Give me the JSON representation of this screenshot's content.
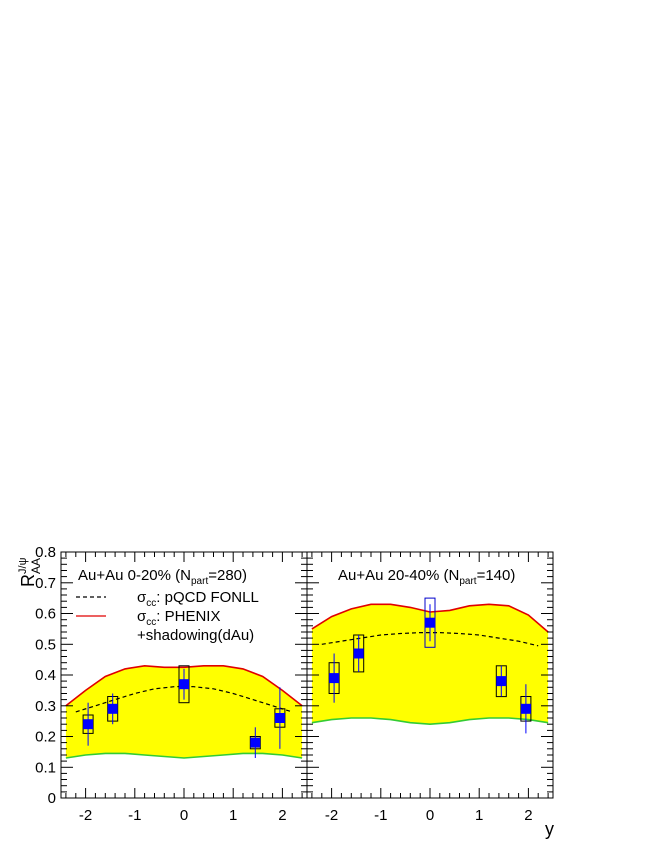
{
  "chart_data": {
    "type": "scatter",
    "ylabel": "R",
    "ylabel_sub": "AA",
    "ylabel_sup": "J/ψ",
    "xlabel": "y",
    "ylim": [
      0,
      0.8
    ],
    "xlim": [
      -2.5,
      2.5
    ],
    "yticks": [
      "0",
      "0.1",
      "0.2",
      "0.3",
      "0.4",
      "0.5",
      "0.6",
      "0.7",
      "0.8"
    ],
    "xticks": [
      "-2",
      "-1",
      "0",
      "1",
      "2"
    ],
    "legend": {
      "dashed": {
        "sym": "σ",
        "sub": "cc",
        "text": ": pQCD FONLL"
      },
      "red": {
        "sym": "σ",
        "sub": "cc",
        "text": ": PHENIX"
      },
      "red_line2": "+shadowing(dAu)"
    },
    "panels": [
      {
        "title_main": "Au+Au 0-20% (N",
        "title_sub": "part",
        "title_end": "=280)",
        "points": [
          {
            "x": -1.95,
            "y": 0.24,
            "stat": 0.07,
            "sys": 0.03,
            "box_color": "#000000"
          },
          {
            "x": -1.45,
            "y": 0.29,
            "stat": 0.05,
            "sys": 0.04,
            "box_color": "#000000"
          },
          {
            "x": 0.0,
            "y": 0.37,
            "stat": 0.05,
            "sys": 0.06,
            "box_color": "#000000"
          },
          {
            "x": 1.45,
            "y": 0.18,
            "stat": 0.05,
            "sys": 0.02,
            "box_color": "#000000"
          },
          {
            "x": 1.95,
            "y": 0.26,
            "stat": 0.1,
            "sys": 0.03,
            "box_color": "#000000"
          }
        ],
        "band_upper": [
          [
            -2.4,
            0.3
          ],
          [
            -2.0,
            0.35
          ],
          [
            -1.6,
            0.395
          ],
          [
            -1.2,
            0.42
          ],
          [
            -0.8,
            0.43
          ],
          [
            -0.4,
            0.425
          ],
          [
            0.0,
            0.425
          ],
          [
            0.4,
            0.43
          ],
          [
            0.8,
            0.43
          ],
          [
            1.2,
            0.42
          ],
          [
            1.6,
            0.395
          ],
          [
            2.0,
            0.35
          ],
          [
            2.4,
            0.3
          ]
        ],
        "band_lower": [
          [
            -2.4,
            0.13
          ],
          [
            -2.0,
            0.14
          ],
          [
            -1.6,
            0.145
          ],
          [
            -1.2,
            0.145
          ],
          [
            -0.8,
            0.14
          ],
          [
            -0.4,
            0.135
          ],
          [
            0.0,
            0.13
          ],
          [
            0.4,
            0.135
          ],
          [
            0.8,
            0.14
          ],
          [
            1.2,
            0.145
          ],
          [
            1.6,
            0.145
          ],
          [
            2.0,
            0.14
          ],
          [
            2.4,
            0.13
          ]
        ],
        "dashed": [
          [
            -2.2,
            0.28
          ],
          [
            -1.8,
            0.3
          ],
          [
            -1.4,
            0.32
          ],
          [
            -1.0,
            0.34
          ],
          [
            -0.6,
            0.355
          ],
          [
            -0.2,
            0.362
          ],
          [
            0.0,
            0.363
          ],
          [
            0.2,
            0.362
          ],
          [
            0.6,
            0.355
          ],
          [
            1.0,
            0.34
          ],
          [
            1.4,
            0.32
          ],
          [
            1.8,
            0.3
          ],
          [
            2.2,
            0.28
          ]
        ]
      },
      {
        "title_main": "Au+Au 20-40% (N",
        "title_sub": "part",
        "title_end": "=140)",
        "points": [
          {
            "x": -1.95,
            "y": 0.39,
            "stat": 0.08,
            "sys": 0.05,
            "box_color": "#000000"
          },
          {
            "x": -1.45,
            "y": 0.47,
            "stat": 0.06,
            "sys": 0.06,
            "box_color": "#000000"
          },
          {
            "x": 0.0,
            "y": 0.57,
            "stat": 0.06,
            "sys": 0.08,
            "box_color": "#0000cc"
          },
          {
            "x": 1.45,
            "y": 0.38,
            "stat": 0.05,
            "sys": 0.05,
            "box_color": "#000000"
          },
          {
            "x": 1.95,
            "y": 0.29,
            "stat": 0.08,
            "sys": 0.04,
            "box_color": "#000000"
          }
        ],
        "band_upper": [
          [
            -2.4,
            0.55
          ],
          [
            -2.0,
            0.59
          ],
          [
            -1.6,
            0.615
          ],
          [
            -1.2,
            0.63
          ],
          [
            -0.8,
            0.63
          ],
          [
            -0.4,
            0.62
          ],
          [
            0.0,
            0.605
          ],
          [
            0.4,
            0.61
          ],
          [
            0.8,
            0.625
          ],
          [
            1.2,
            0.63
          ],
          [
            1.6,
            0.625
          ],
          [
            2.0,
            0.595
          ],
          [
            2.4,
            0.54
          ]
        ],
        "band_lower": [
          [
            -2.4,
            0.245
          ],
          [
            -2.0,
            0.255
          ],
          [
            -1.6,
            0.26
          ],
          [
            -1.2,
            0.26
          ],
          [
            -0.8,
            0.255
          ],
          [
            -0.4,
            0.245
          ],
          [
            0.0,
            0.24
          ],
          [
            0.4,
            0.245
          ],
          [
            0.8,
            0.255
          ],
          [
            1.2,
            0.26
          ],
          [
            1.6,
            0.26
          ],
          [
            2.0,
            0.255
          ],
          [
            2.4,
            0.245
          ]
        ],
        "dashed": [
          [
            -2.2,
            0.5
          ],
          [
            -1.8,
            0.51
          ],
          [
            -1.4,
            0.52
          ],
          [
            -1.0,
            0.53
          ],
          [
            -0.6,
            0.535
          ],
          [
            -0.2,
            0.538
          ],
          [
            0.0,
            0.538
          ],
          [
            0.2,
            0.538
          ],
          [
            0.6,
            0.535
          ],
          [
            1.0,
            0.53
          ],
          [
            1.4,
            0.52
          ],
          [
            1.8,
            0.51
          ],
          [
            2.2,
            0.495
          ]
        ]
      }
    ],
    "colors": {
      "band_fill": "#ffff00",
      "band_upper": "#e00000",
      "band_lower": "#33cc33",
      "marker": "#0000ff",
      "dashed": "#000000",
      "red_legend": "#e00000"
    }
  }
}
